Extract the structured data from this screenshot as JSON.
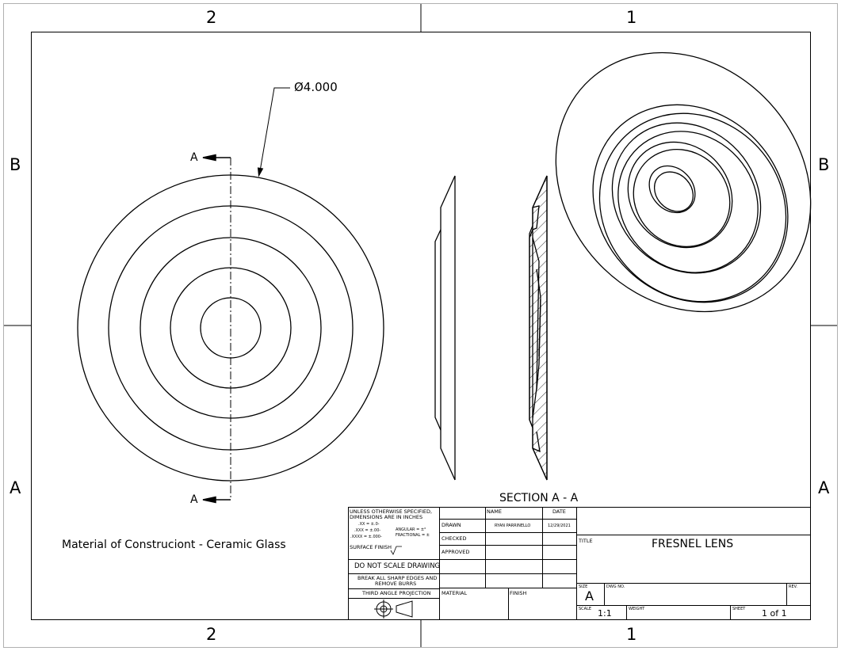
{
  "zones": {
    "top": [
      "2",
      "1"
    ],
    "bottom": [
      "2",
      "1"
    ],
    "left": [
      "B",
      "A"
    ],
    "right": [
      "B",
      "A"
    ]
  },
  "dimension": {
    "diameter": "Ø4.000"
  },
  "section_markers": {
    "top": "A",
    "bottom": "A"
  },
  "section_label": "SECTION A - A",
  "material_note": "Material of Construciont -  Ceramic Glass",
  "title_block": {
    "general_notes": {
      "line1": "UNLESS OTHERWISE SPECIFIED,",
      "line2": "DIMENSIONS ARE IN INCHES",
      "tol_x": ".XX = ±.0-",
      "tol_xx": ".XXX = ±.00-",
      "tol_xxx": ".XXXX = ±.000-",
      "angular": "ANGULAR = ±°",
      "fractional": "FRACTIONAL = ±",
      "surface_finish": "SURFACE FINISH"
    },
    "do_not_scale": "DO NOT SCALE DRAWING",
    "break_edges_1": "BREAK ALL SHARP EDGES AND",
    "break_edges_2": "REMOVE BURRS",
    "projection": "THIRD ANGLE PROJECTION",
    "headers": {
      "name": "NAME",
      "date": "DATE"
    },
    "rows": {
      "drawn": "DRAWN",
      "drawn_name": "RYAN PARRINELLO",
      "drawn_date": "12/29/2021",
      "checked": "CHECKED",
      "approved": "APPROVED"
    },
    "material_label": "MATERIAL",
    "finish_label": "FINISH",
    "title_label": "TITLE",
    "title": "FRESNEL LENS",
    "size_label": "SIZE",
    "size": "A",
    "dwg_no_label": "DWG NO.",
    "rev_label": "REV.",
    "scale_label": "SCALE",
    "scale": "1:1",
    "weight_label": "WEIGHT",
    "sheet_label": "SHEET",
    "sheet": "1 of 1"
  }
}
